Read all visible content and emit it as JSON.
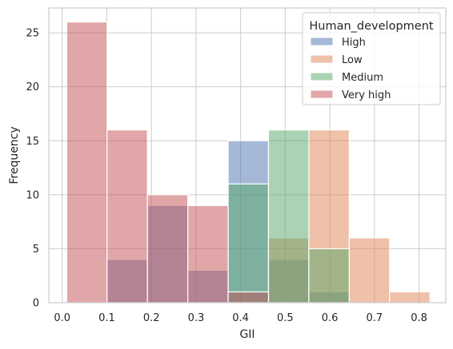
{
  "chart_data": {
    "type": "bar",
    "subtype": "overlaid-histogram",
    "title": "",
    "xlabel": "GII",
    "ylabel": "Frequency",
    "xlim": [
      -0.03,
      0.86
    ],
    "ylim": [
      0,
      27.3
    ],
    "grid": true,
    "legend_position": "top-right",
    "bin_edges": [
      0.01,
      0.1005,
      0.191,
      0.2815,
      0.372,
      0.4625,
      0.553,
      0.6435,
      0.734,
      0.8245
    ],
    "xticks": [
      0.0,
      0.1,
      0.2,
      0.3,
      0.4,
      0.5,
      0.6,
      0.7,
      0.8
    ],
    "xtick_labels": [
      "0.0",
      "0.1",
      "0.2",
      "0.3",
      "0.4",
      "0.5",
      "0.6",
      "0.7",
      "0.8"
    ],
    "yticks": [
      0,
      5,
      10,
      15,
      20,
      25
    ],
    "ytick_labels": [
      "0",
      "5",
      "10",
      "15",
      "20",
      "25"
    ],
    "legend_title": "Human_development",
    "series": [
      {
        "name": "High",
        "color": "#4c72b0",
        "counts": [
          0,
          4,
          9,
          3,
          15,
          4,
          1,
          0,
          0
        ]
      },
      {
        "name": "Low",
        "color": "#dd8452",
        "counts": [
          0,
          0,
          0,
          0,
          0,
          6,
          16,
          6,
          1
        ]
      },
      {
        "name": "Medium",
        "color": "#55a868",
        "counts": [
          0,
          0,
          0,
          0,
          11,
          16,
          5,
          0,
          0
        ]
      },
      {
        "name": "Very high",
        "color": "#c44e52",
        "counts": [
          26,
          16,
          10,
          9,
          1,
          0,
          0,
          0,
          0
        ]
      }
    ]
  }
}
